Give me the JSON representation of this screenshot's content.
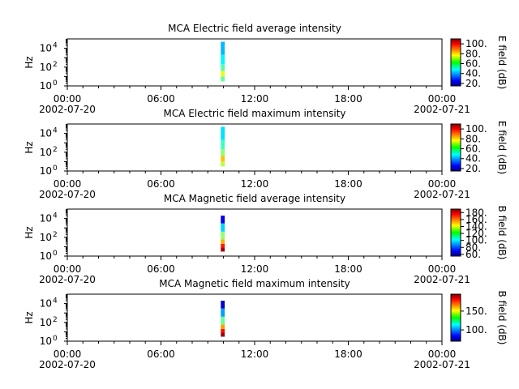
{
  "chart_data": [
    {
      "type": "heatmap",
      "title": "MCA  Electric field average intensity",
      "ylabel": "Hz",
      "yscale": "log",
      "ylim": [
        1,
        100000
      ],
      "yticks": [
        {
          "base": "10",
          "exp": "0"
        },
        {
          "base": "10",
          "exp": "2"
        },
        {
          "base": "10",
          "exp": "4"
        }
      ],
      "xlim": [
        "2002-07-20 00:00",
        "2002-07-21 00:00"
      ],
      "xticks": [
        {
          "time": "00:00",
          "date": "2002-07-20"
        },
        {
          "time": "06:00",
          "date": ""
        },
        {
          "time": "12:00",
          "date": ""
        },
        {
          "time": "18:00",
          "date": ""
        },
        {
          "time": "00:00",
          "date": "2002-07-21"
        }
      ],
      "colorbar": {
        "label": "E field (dB)",
        "range": [
          15,
          110
        ],
        "ticks": [
          "20.",
          "40.",
          "60.",
          "80.",
          "100."
        ],
        "tick_values": [
          20,
          40,
          60,
          80,
          100
        ]
      },
      "data_window": {
        "start": "09:50",
        "end": "10:05",
        "freq_range": [
          3,
          50000
        ]
      },
      "bands": [
        {
          "f_low": 3,
          "f_high": 10,
          "dB": 60
        },
        {
          "f_low": 10,
          "f_high": 40,
          "dB": 72
        },
        {
          "f_low": 40,
          "f_high": 200,
          "dB": 58
        },
        {
          "f_low": 200,
          "f_high": 2000,
          "dB": 50
        },
        {
          "f_low": 2000,
          "f_high": 50000,
          "dB": 44
        }
      ]
    },
    {
      "type": "heatmap",
      "title": "MCA  Electric field maximum intensity",
      "ylabel": "Hz",
      "yscale": "log",
      "ylim": [
        1,
        100000
      ],
      "yticks": [
        {
          "base": "10",
          "exp": "0"
        },
        {
          "base": "10",
          "exp": "2"
        },
        {
          "base": "10",
          "exp": "4"
        }
      ],
      "xlim": [
        "2002-07-20 00:00",
        "2002-07-21 00:00"
      ],
      "xticks": [
        {
          "time": "00:00",
          "date": "2002-07-20"
        },
        {
          "time": "06:00",
          "date": ""
        },
        {
          "time": "12:00",
          "date": ""
        },
        {
          "time": "18:00",
          "date": ""
        },
        {
          "time": "00:00",
          "date": "2002-07-21"
        }
      ],
      "colorbar": {
        "label": "E field (dB)",
        "range": [
          15,
          110
        ],
        "ticks": [
          "20.",
          "40.",
          "60.",
          "80.",
          "100."
        ],
        "tick_values": [
          20,
          40,
          60,
          80,
          100
        ]
      },
      "data_window": {
        "start": "09:50",
        "end": "10:05",
        "freq_range": [
          3,
          50000
        ]
      },
      "bands": [
        {
          "f_low": 3,
          "f_high": 10,
          "dB": 68
        },
        {
          "f_low": 10,
          "f_high": 40,
          "dB": 80
        },
        {
          "f_low": 40,
          "f_high": 200,
          "dB": 64
        },
        {
          "f_low": 200,
          "f_high": 2000,
          "dB": 56
        },
        {
          "f_low": 2000,
          "f_high": 50000,
          "dB": 48
        }
      ]
    },
    {
      "type": "heatmap",
      "title": "MCA  Magnetic field average intensity",
      "ylabel": "Hz",
      "yscale": "log",
      "ylim": [
        1,
        100000
      ],
      "yticks": [
        {
          "base": "10",
          "exp": "0"
        },
        {
          "base": "10",
          "exp": "2"
        },
        {
          "base": "10",
          "exp": "4"
        }
      ],
      "xlim": [
        "2002-07-20 00:00",
        "2002-07-21 00:00"
      ],
      "xticks": [
        {
          "time": "00:00",
          "date": "2002-07-20"
        },
        {
          "time": "06:00",
          "date": ""
        },
        {
          "time": "12:00",
          "date": ""
        },
        {
          "time": "18:00",
          "date": ""
        },
        {
          "time": "00:00",
          "date": "2002-07-21"
        }
      ],
      "colorbar": {
        "label": "B field (dB)",
        "range": [
          55,
          190
        ],
        "ticks": [
          "60.",
          "80.",
          "100.",
          "120.",
          "140.",
          "160.",
          "180."
        ],
        "tick_values": [
          60,
          80,
          100,
          120,
          140,
          160,
          180
        ]
      },
      "data_window": {
        "start": "09:50",
        "end": "10:05",
        "freq_range": [
          3,
          20000
        ]
      },
      "bands": [
        {
          "f_low": 3,
          "f_high": 8,
          "dB": 185
        },
        {
          "f_low": 8,
          "f_high": 20,
          "dB": 170
        },
        {
          "f_low": 20,
          "f_high": 60,
          "dB": 150
        },
        {
          "f_low": 60,
          "f_high": 400,
          "dB": 125
        },
        {
          "f_low": 400,
          "f_high": 3000,
          "dB": 100
        },
        {
          "f_low": 3000,
          "f_high": 20000,
          "dB": 70
        }
      ]
    },
    {
      "type": "heatmap",
      "title": "MCA  Magnetic field maximum intensity",
      "ylabel": "Hz",
      "yscale": "log",
      "ylim": [
        1,
        100000
      ],
      "yticks": [
        {
          "base": "10",
          "exp": "0"
        },
        {
          "base": "10",
          "exp": "2"
        },
        {
          "base": "10",
          "exp": "4"
        }
      ],
      "xlim": [
        "2002-07-20 00:00",
        "2002-07-21 00:00"
      ],
      "xticks": [
        {
          "time": "00:00",
          "date": "2002-07-20"
        },
        {
          "time": "06:00",
          "date": ""
        },
        {
          "time": "12:00",
          "date": ""
        },
        {
          "time": "18:00",
          "date": ""
        },
        {
          "time": "00:00",
          "date": "2002-07-21"
        }
      ],
      "colorbar": {
        "label": "B field (dB)",
        "range": [
          70,
          195
        ],
        "ticks": [
          "100.",
          "150."
        ],
        "tick_values": [
          100,
          150
        ]
      },
      "data_window": {
        "start": "09:50",
        "end": "10:05",
        "freq_range": [
          3,
          20000
        ]
      },
      "bands": [
        {
          "f_low": 3,
          "f_high": 8,
          "dB": 192
        },
        {
          "f_low": 8,
          "f_high": 20,
          "dB": 178
        },
        {
          "f_low": 20,
          "f_high": 60,
          "dB": 160
        },
        {
          "f_low": 60,
          "f_high": 400,
          "dB": 130
        },
        {
          "f_low": 400,
          "f_high": 3000,
          "dB": 105
        },
        {
          "f_low": 3000,
          "f_high": 20000,
          "dB": 80
        }
      ]
    }
  ]
}
